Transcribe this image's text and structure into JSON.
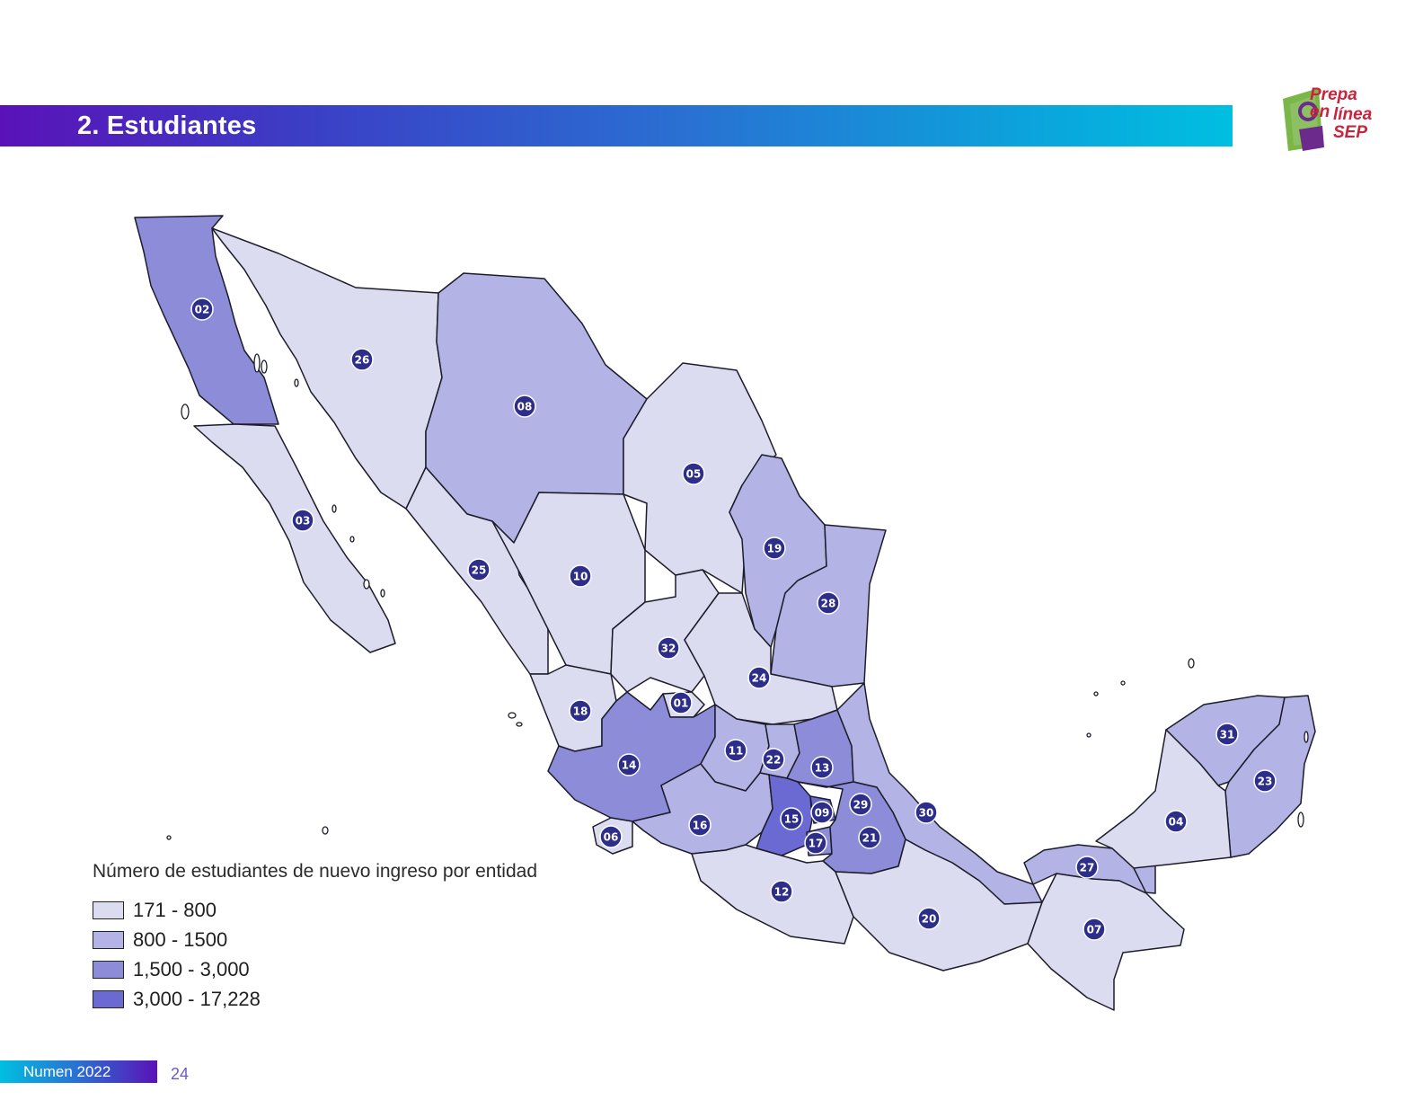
{
  "header": {
    "title": "2. Estudiantes"
  },
  "logo": {
    "line1": "Prepa en",
    "line2": "línea",
    "line3": "SEP"
  },
  "legend": {
    "title": "Número de estudiantes de nuevo ingreso por entidad",
    "items": [
      {
        "label": "171 - 800",
        "color": "#dcdcf0"
      },
      {
        "label": "800 - 1500",
        "color": "#b3b3e6"
      },
      {
        "label": "1,500 - 3,000",
        "color": "#8c8cd9"
      },
      {
        "label": "3,000 - 17,228",
        "color": "#6a6ad2"
      }
    ]
  },
  "marker_color": "#2d2d8a",
  "states": [
    {
      "code": "02",
      "level": 3
    },
    {
      "code": "26",
      "level": 1
    },
    {
      "code": "08",
      "level": 2
    },
    {
      "code": "03",
      "level": 1
    },
    {
      "code": "05",
      "level": 1
    },
    {
      "code": "19",
      "level": 2
    },
    {
      "code": "25",
      "level": 1
    },
    {
      "code": "10",
      "level": 1
    },
    {
      "code": "28",
      "level": 2
    },
    {
      "code": "32",
      "level": 1
    },
    {
      "code": "24",
      "level": 1
    },
    {
      "code": "18",
      "level": 1
    },
    {
      "code": "01",
      "level": 1
    },
    {
      "code": "14",
      "level": 3
    },
    {
      "code": "11",
      "level": 2
    },
    {
      "code": "22",
      "level": 2
    },
    {
      "code": "13",
      "level": 3
    },
    {
      "code": "29",
      "level": 2
    },
    {
      "code": "30",
      "level": 2
    },
    {
      "code": "31",
      "level": 2
    },
    {
      "code": "23",
      "level": 2
    },
    {
      "code": "04",
      "level": 1
    },
    {
      "code": "06",
      "level": 1
    },
    {
      "code": "16",
      "level": 2
    },
    {
      "code": "15",
      "level": 4
    },
    {
      "code": "09",
      "level": 4
    },
    {
      "code": "17",
      "level": 3
    },
    {
      "code": "21",
      "level": 3
    },
    {
      "code": "27",
      "level": 2
    },
    {
      "code": "12",
      "level": 1
    },
    {
      "code": "20",
      "level": 1
    },
    {
      "code": "07",
      "level": 1
    }
  ],
  "footer": {
    "text": "Numen 2022",
    "page": "24"
  }
}
